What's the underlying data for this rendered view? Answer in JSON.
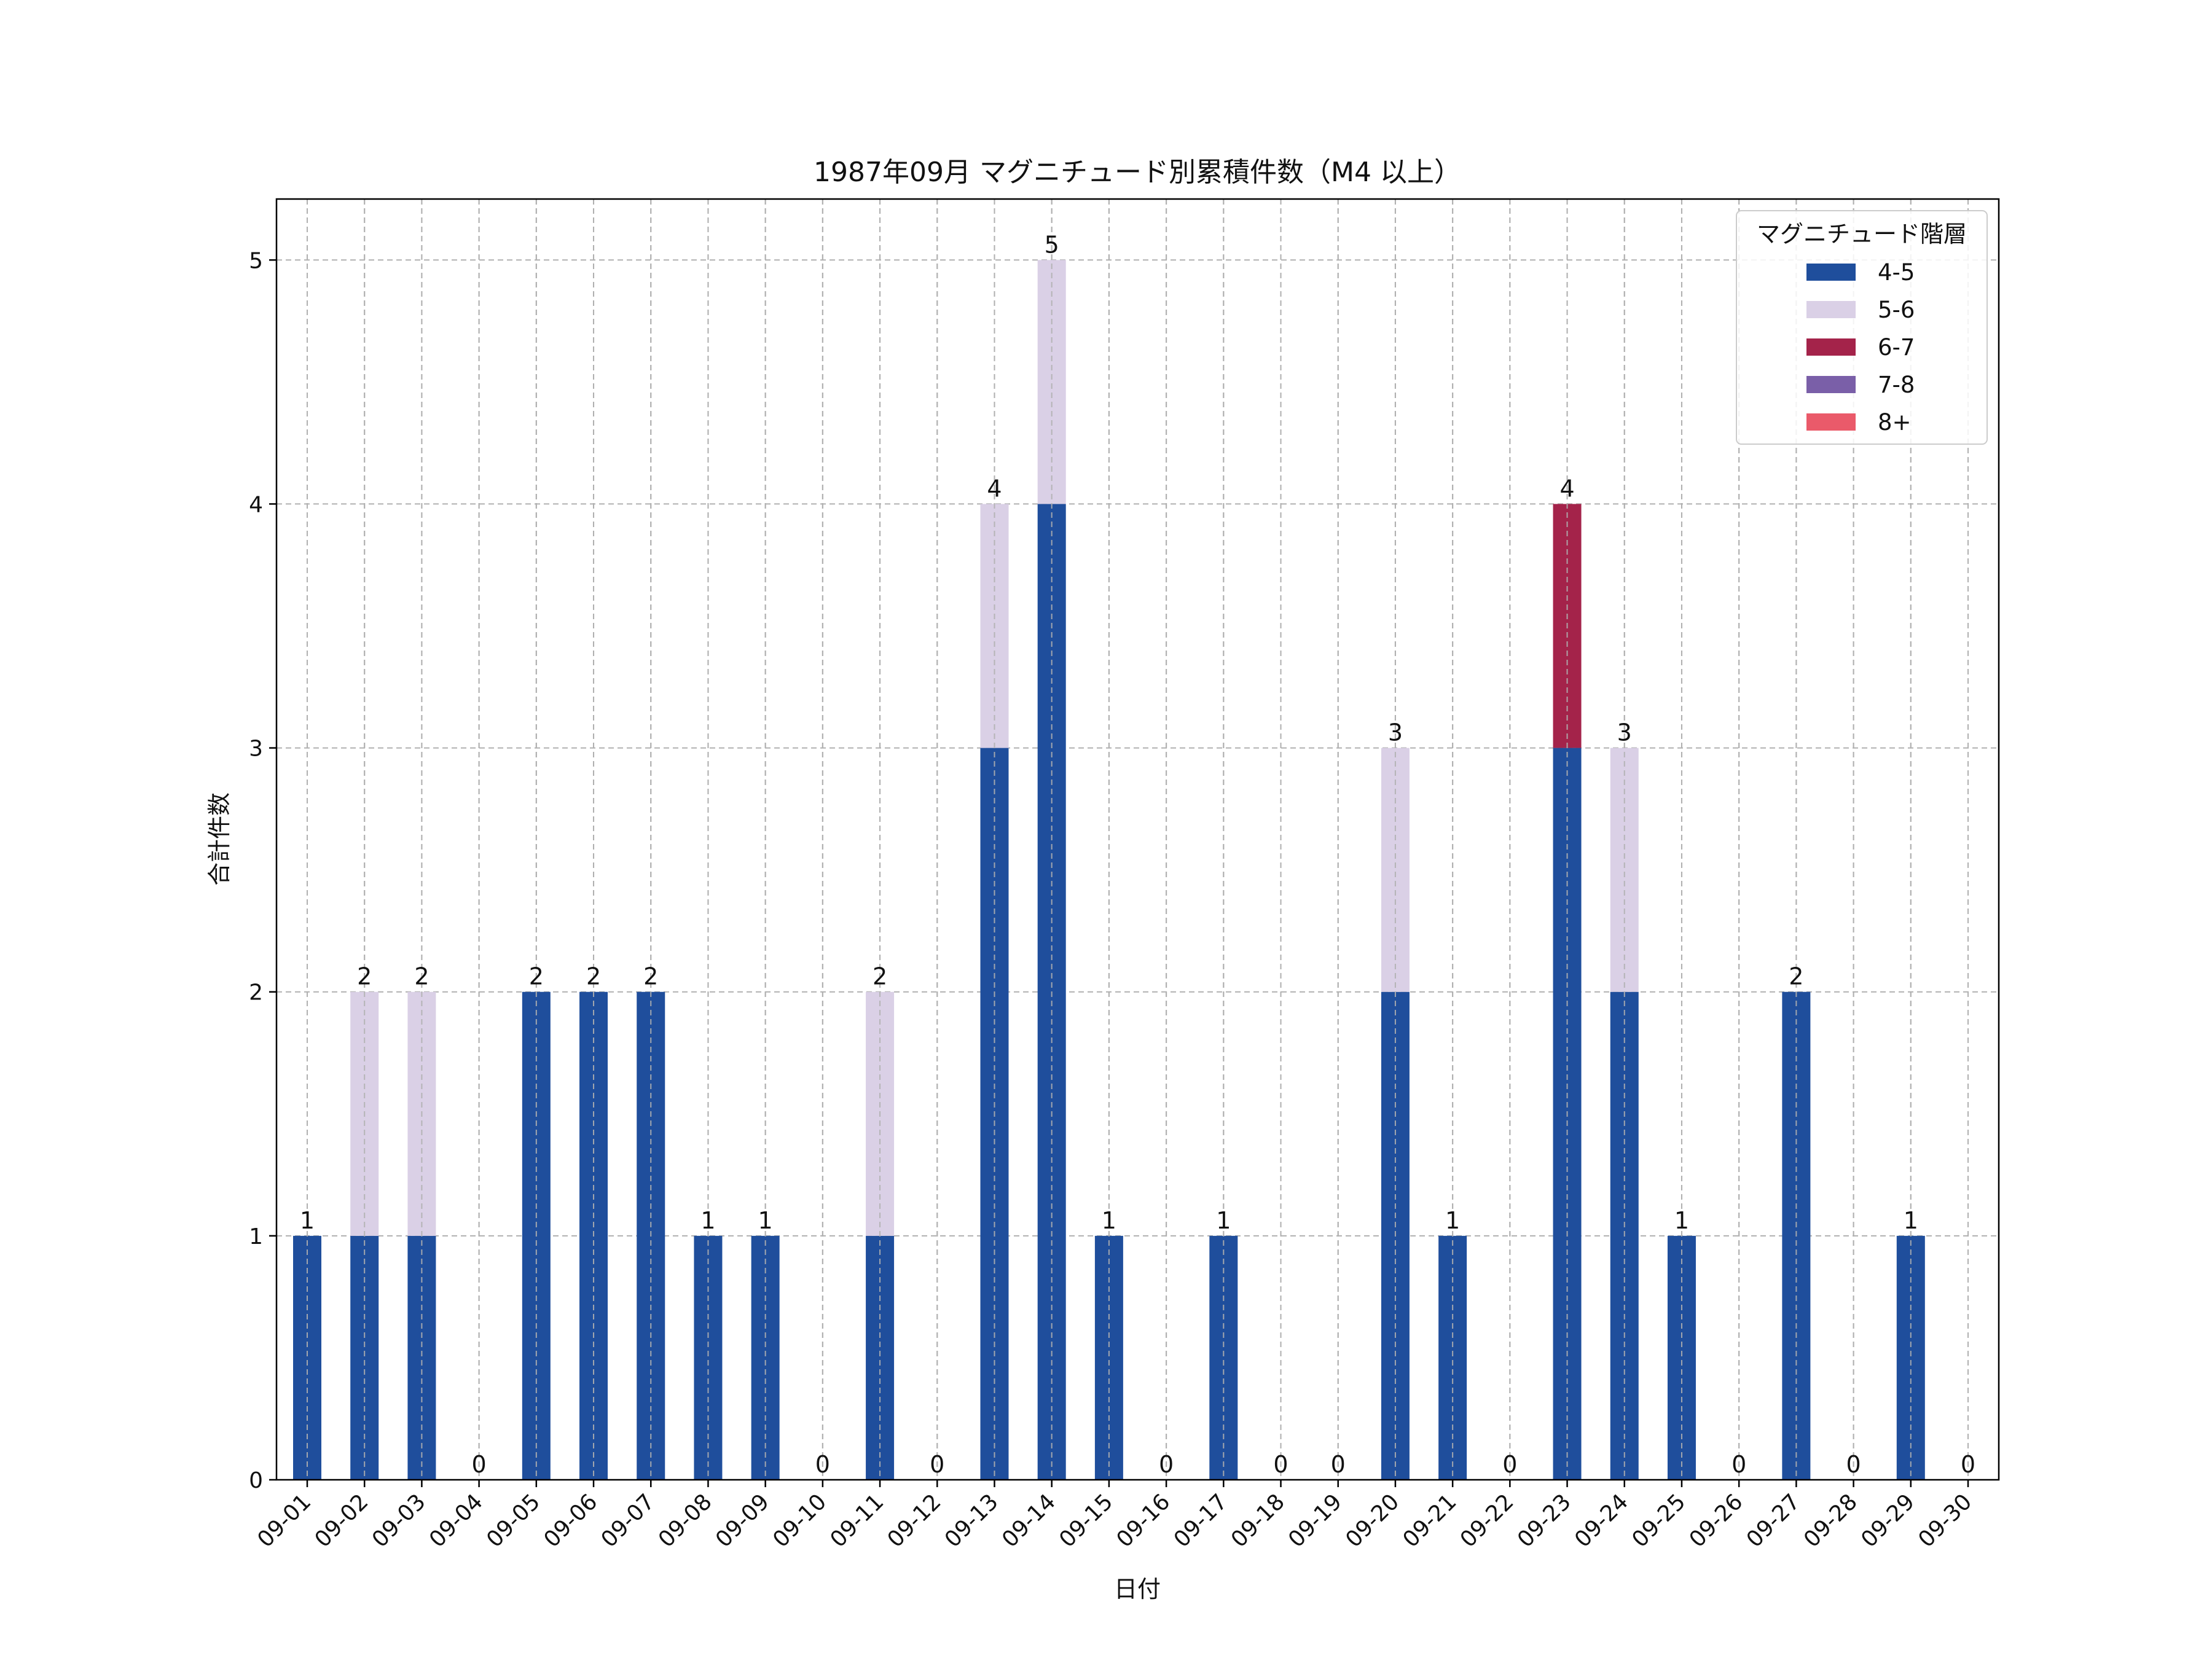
{
  "chart_data": {
    "type": "bar",
    "stacked": true,
    "title": "1987年09月 マグニチュード別累積件数（M4 以上）",
    "xlabel": "日付",
    "ylabel": "合計件数",
    "ylim": [
      0,
      5.25
    ],
    "yticks": [
      0,
      1,
      2,
      3,
      4,
      5
    ],
    "grid": true,
    "legend": {
      "title": "マグニチュード階層",
      "position": "top-right"
    },
    "categories": [
      "09-01",
      "09-02",
      "09-03",
      "09-04",
      "09-05",
      "09-06",
      "09-07",
      "09-08",
      "09-09",
      "09-10",
      "09-11",
      "09-12",
      "09-13",
      "09-14",
      "09-15",
      "09-16",
      "09-17",
      "09-18",
      "09-19",
      "09-20",
      "09-21",
      "09-22",
      "09-23",
      "09-24",
      "09-25",
      "09-26",
      "09-27",
      "09-28",
      "09-29",
      "09-30"
    ],
    "series": [
      {
        "name": "4-5",
        "color": "#1f4e9c",
        "values": [
          1,
          1,
          1,
          0,
          2,
          2,
          2,
          1,
          1,
          0,
          1,
          0,
          3,
          4,
          1,
          0,
          1,
          0,
          0,
          2,
          1,
          0,
          3,
          2,
          1,
          0,
          2,
          0,
          1,
          0
        ]
      },
      {
        "name": "5-6",
        "color": "#dad0e6",
        "values": [
          0,
          1,
          1,
          0,
          0,
          0,
          0,
          0,
          0,
          0,
          1,
          0,
          1,
          1,
          0,
          0,
          0,
          0,
          0,
          1,
          0,
          0,
          0,
          1,
          0,
          0,
          0,
          0,
          0,
          0
        ]
      },
      {
        "name": "6-7",
        "color": "#a4234a",
        "values": [
          0,
          0,
          0,
          0,
          0,
          0,
          0,
          0,
          0,
          0,
          0,
          0,
          0,
          0,
          0,
          0,
          0,
          0,
          0,
          0,
          0,
          0,
          1,
          0,
          0,
          0,
          0,
          0,
          0,
          0
        ]
      },
      {
        "name": "7-8",
        "color": "#7a5fa8",
        "values": [
          0,
          0,
          0,
          0,
          0,
          0,
          0,
          0,
          0,
          0,
          0,
          0,
          0,
          0,
          0,
          0,
          0,
          0,
          0,
          0,
          0,
          0,
          0,
          0,
          0,
          0,
          0,
          0,
          0,
          0
        ]
      },
      {
        "name": "8+",
        "color": "#ea5a6a",
        "values": [
          0,
          0,
          0,
          0,
          0,
          0,
          0,
          0,
          0,
          0,
          0,
          0,
          0,
          0,
          0,
          0,
          0,
          0,
          0,
          0,
          0,
          0,
          0,
          0,
          0,
          0,
          0,
          0,
          0,
          0
        ]
      }
    ],
    "totals": [
      1,
      2,
      2,
      0,
      2,
      2,
      2,
      1,
      1,
      0,
      2,
      0,
      4,
      5,
      1,
      0,
      1,
      0,
      0,
      3,
      1,
      0,
      4,
      3,
      1,
      0,
      2,
      0,
      1,
      0
    ]
  }
}
